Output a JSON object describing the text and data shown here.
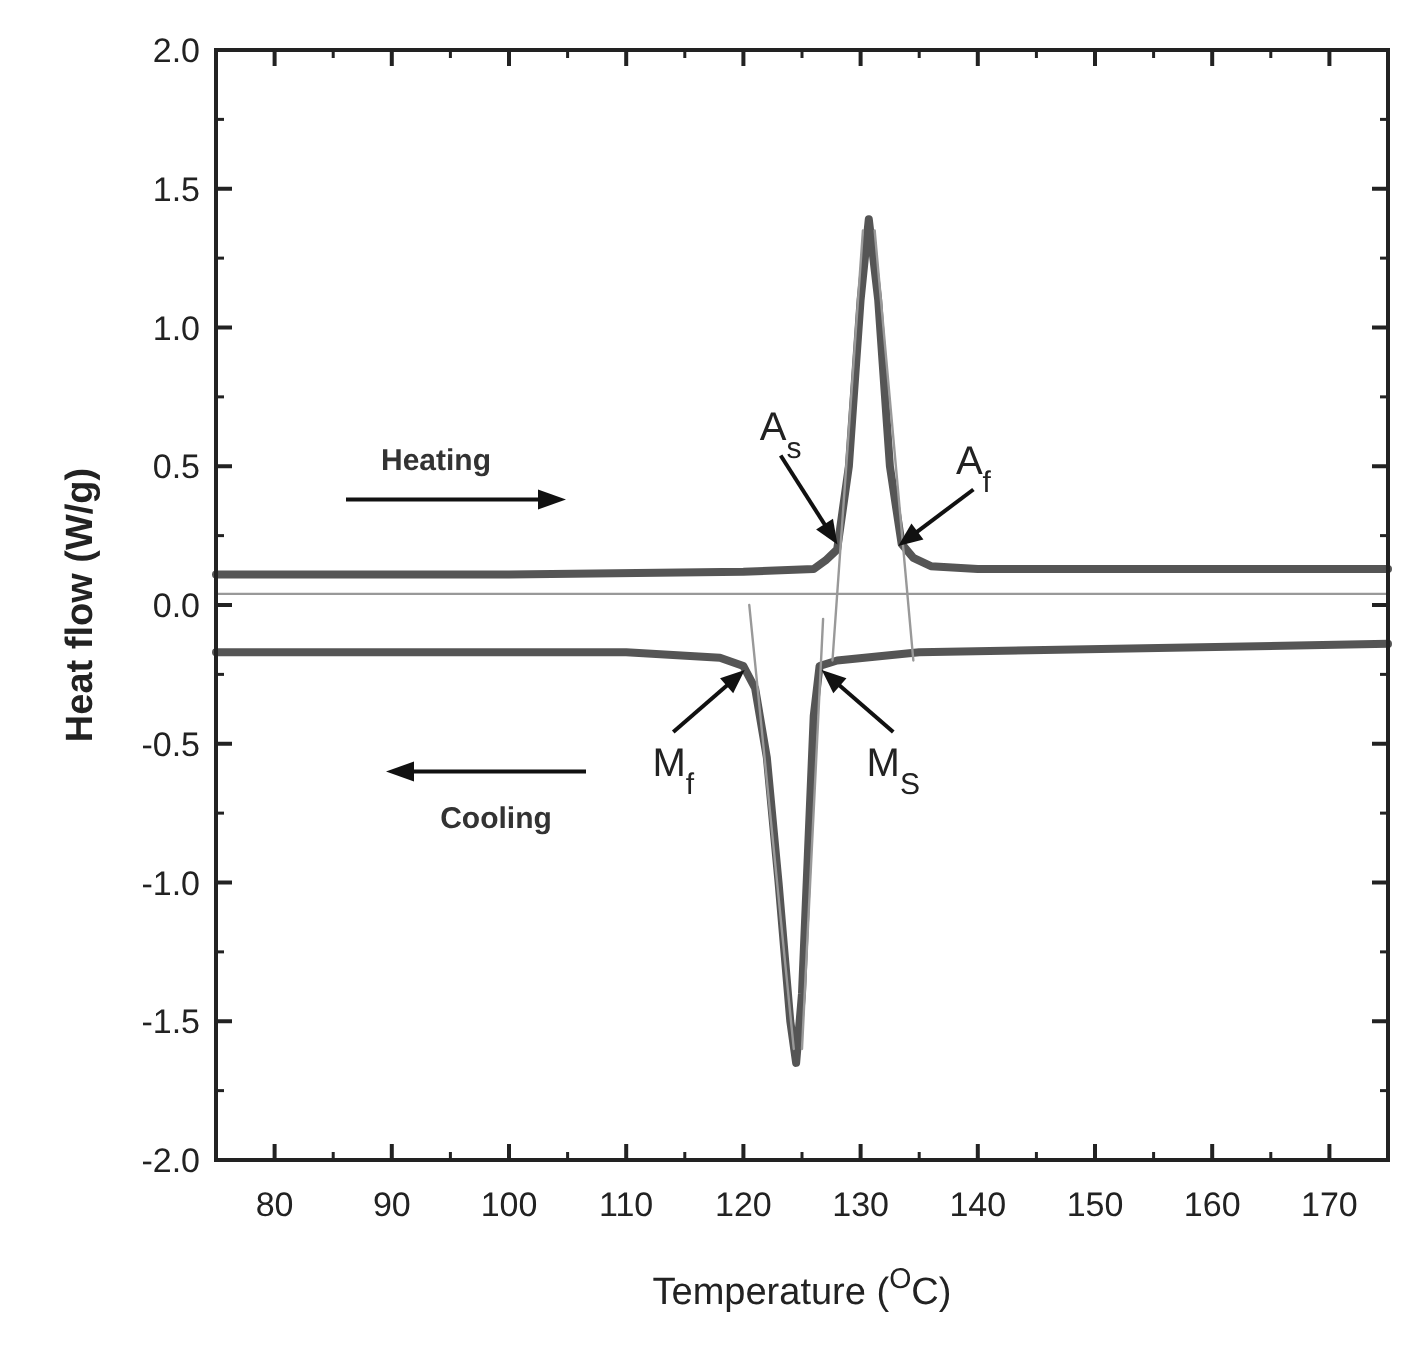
{
  "chart_data": {
    "type": "line",
    "xlabel": "Temperature ($^{O}$C)",
    "ylabel": "Heat flow (W/g)",
    "xlim": [
      75,
      175
    ],
    "ylim": [
      -2,
      2
    ],
    "xticks": [
      80,
      90,
      100,
      110,
      120,
      130,
      140,
      150,
      160,
      170
    ],
    "yticks": [
      {
        "value": -2,
        "label": "-2.0"
      },
      {
        "value": -1.5,
        "label": "-1.5"
      },
      {
        "value": -1,
        "label": "-1.0"
      },
      {
        "value": -0.5,
        "label": "-0.5"
      },
      {
        "value": 0,
        "label": "0.0"
      },
      {
        "value": 0.5,
        "label": "0.5"
      },
      {
        "value": 1,
        "label": "1.0"
      },
      {
        "value": 1.5,
        "label": "1.5"
      },
      {
        "value": 2,
        "label": "2.0"
      }
    ],
    "grid": false,
    "marker": "none",
    "line_style": "solid",
    "series": [
      {
        "color": "#555555",
        "x": [
          75,
          100,
          120,
          126,
          127,
          128,
          129,
          130,
          130.7,
          131.5,
          132.5,
          133.5,
          134.5,
          136,
          140,
          175
        ],
        "values": [
          0.11,
          0.11,
          0.12,
          0.13,
          0.16,
          0.2,
          0.5,
          1.1,
          1.39,
          1.1,
          0.5,
          0.22,
          0.17,
          0.14,
          0.13,
          0.13
        ]
      },
      {
        "color": "#555555",
        "x": [
          75,
          110,
          118,
          120,
          121,
          122,
          123,
          124,
          124.5,
          125,
          125.5,
          126,
          126.5,
          128,
          135,
          175
        ],
        "values": [
          -0.17,
          -0.17,
          -0.19,
          -0.22,
          -0.3,
          -0.55,
          -1.0,
          -1.5,
          -1.65,
          -1.4,
          -0.9,
          -0.4,
          -0.22,
          -0.2,
          -0.17,
          -0.14
        ]
      },
      {
        "color": "#999999",
        "x": [
          75,
          175
        ],
        "values": [
          0.04,
          0.04
        ]
      },
      {
        "color": "#999999",
        "x": [
          127.6,
          130.2
        ],
        "values": [
          -0.2,
          1.35
        ]
      },
      {
        "color": "#999999",
        "x": [
          134.5,
          131.2
        ],
        "values": [
          -0.2,
          1.35
        ]
      },
      {
        "color": "#999999",
        "x": [
          120.5,
          124.3
        ],
        "values": [
          0.0,
          -1.6
        ]
      },
      {
        "color": "#999999",
        "x": [
          126.8,
          125
        ],
        "values": [
          -0.05,
          -1.6
        ]
      }
    ],
    "annotations": [
      "Heating",
      "Cooling",
      {
        "text": "A$_{s}$",
        "x": 128.3,
        "y": 0.2
      },
      {
        "text": "A$_{f}$",
        "x": 132.8,
        "y": 0.2
      },
      {
        "text": "M$_{f}$",
        "x": 120.5,
        "y": -0.22
      },
      {
        "text": "M$_{S}$",
        "x": 126.3,
        "y": -0.22
      }
    ]
  }
}
